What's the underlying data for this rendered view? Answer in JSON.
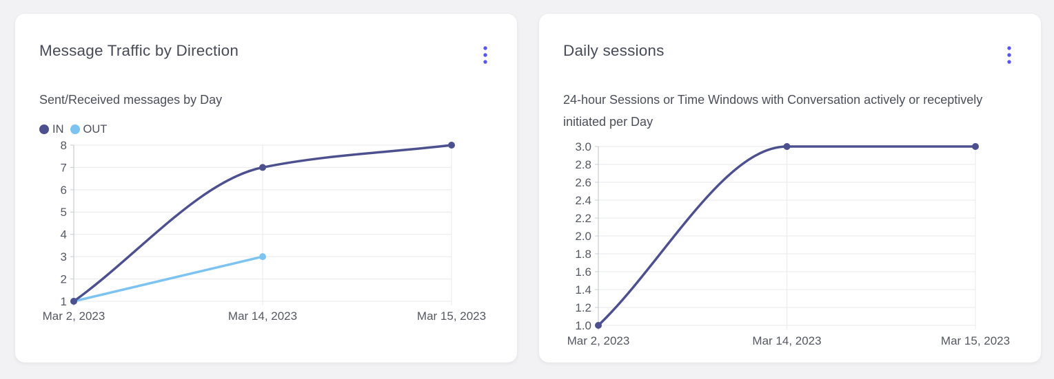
{
  "page": {
    "background": "#f2f2f4"
  },
  "cards": [
    {
      "title": "Message Traffic by Direction",
      "subtitle": "Sent/Received messages by Day",
      "menu_icon": "kebab-menu-icon"
    },
    {
      "title": "Daily sessions",
      "subtitle": "24-hour Sessions or Time Windows with Conversation actively or receptively initiated per Day",
      "menu_icon": "kebab-menu-icon"
    }
  ],
  "colors": {
    "menu_accent": "#5555f0",
    "series_in": "#4c508f",
    "series_out": "#7cc3f2",
    "gridline": "#e9eaed",
    "axis_line": "#c9cbd2",
    "tick_text": "#545862",
    "title_text": "#474b58"
  },
  "chart_data": [
    {
      "type": "line",
      "title": "Message Traffic by Direction",
      "subtitle": "Sent/Received messages by Day",
      "categories": [
        "Mar 2, 2023",
        "Mar 14, 2023",
        "Mar 15, 2023"
      ],
      "series": [
        {
          "name": "IN",
          "color": "#4c508f",
          "values": [
            1,
            7,
            8
          ]
        },
        {
          "name": "OUT",
          "color": "#7cc3f2",
          "values": [
            1,
            3,
            null
          ]
        }
      ],
      "ylim": [
        1,
        8
      ],
      "yticks": [
        1,
        2,
        3,
        4,
        5,
        6,
        7,
        8
      ],
      "ytick_decimals": 0,
      "grid": true,
      "smooth": true,
      "legend_position": "top-left",
      "xlabel": "",
      "ylabel": ""
    },
    {
      "type": "line",
      "title": "Daily sessions",
      "categories": [
        "Mar 2, 2023",
        "Mar 14, 2023",
        "Mar 15, 2023"
      ],
      "series": [
        {
          "name": "Daily sessions",
          "color": "#4c508f",
          "values": [
            1.0,
            3.0,
            3.0
          ]
        }
      ],
      "ylim": [
        1.0,
        3.0
      ],
      "yticks": [
        1.0,
        1.2,
        1.4,
        1.6,
        1.8,
        2.0,
        2.2,
        2.4,
        2.6,
        2.8,
        3.0
      ],
      "ytick_decimals": 1,
      "grid": true,
      "smooth": true,
      "legend_position": "none",
      "xlabel": "",
      "ylabel": ""
    }
  ]
}
